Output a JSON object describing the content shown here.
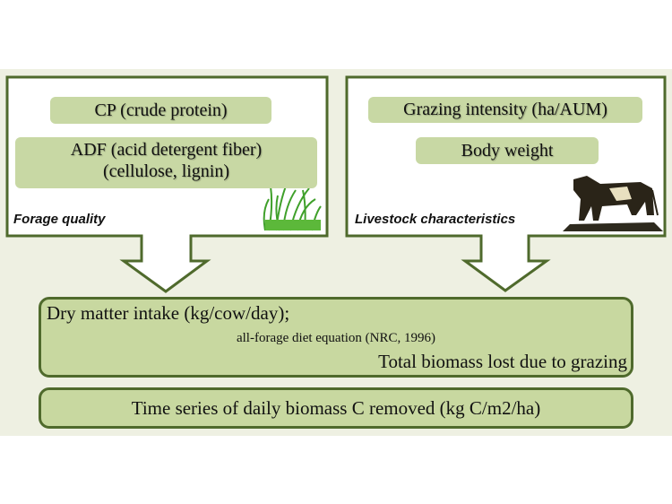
{
  "forage": {
    "label": "Forage quality",
    "items": [
      "CP (crude protein)",
      "ADF (acid detergent fiber)",
      "(cellulose, lignin)"
    ],
    "icon": "grass-icon"
  },
  "livestock": {
    "label": "Livestock characteristics",
    "items": [
      "Grazing intensity (ha/AUM)",
      "Body weight"
    ],
    "icon": "cow-icon"
  },
  "intake": {
    "line1": "Dry matter intake (kg/cow/day);",
    "line2": "all-forage diet equation (NRC, 1996)",
    "line3": "Total biomass lost due to grazing"
  },
  "output": {
    "text": "Time series of daily biomass C removed (kg C/m2/ha)"
  },
  "colors": {
    "fill": "#c8d8a0",
    "border": "#4f6a2c",
    "background": "#eef0e2"
  }
}
